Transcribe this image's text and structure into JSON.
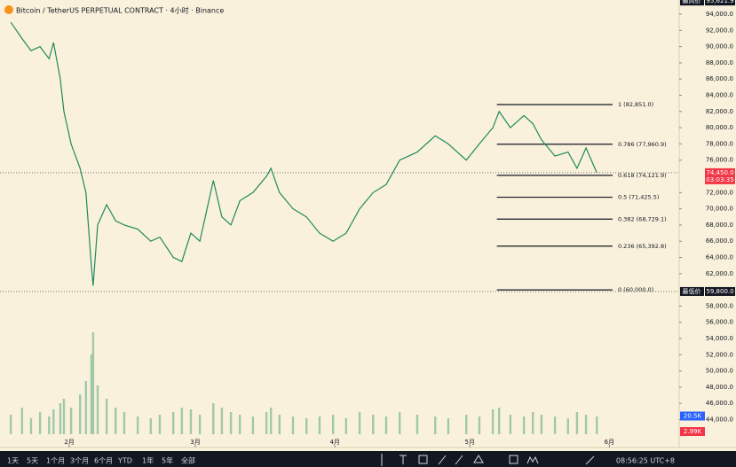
{
  "chart_data": {
    "type": "line",
    "title": "Bitcoin / TetherUS PERPETUAL CONTRACT · 4小时 · Binance",
    "color": "#1e8a5a",
    "x": [
      -13,
      -10.5,
      -8.5,
      -6.5,
      -4.5,
      -3.5,
      -2,
      -1.2,
      0.4,
      2.4,
      3.7,
      4.9,
      5.3,
      6.3,
      8.3,
      10.3,
      12.2,
      15.2,
      18.1,
      20.1,
      23.1,
      25,
      27,
      29,
      32,
      33.9,
      35.9,
      37.9,
      40.8,
      43.8,
      44.8,
      46.7,
      49.7,
      52.7,
      55.6,
      58.6,
      61.5,
      64.5,
      67.5,
      70.4,
      73.4,
      77.3,
      81.3,
      84.2,
      88.2,
      91.1,
      94.1,
      95.5,
      98,
      101,
      103,
      104.9,
      107.9,
      110.8,
      112.8,
      114.8,
      117.2
    ],
    "values": [
      93000,
      91000,
      89500,
      90000,
      88500,
      90500,
      86000,
      82000,
      78000,
      75000,
      72000,
      63000,
      60500,
      68000,
      70500,
      68500,
      68000,
      67500,
      66000,
      66500,
      64000,
      63500,
      67000,
      66000,
      73500,
      69000,
      68000,
      71000,
      72000,
      74000,
      75000,
      72000,
      70000,
      69000,
      67000,
      66000,
      67000,
      70000,
      72000,
      73000,
      76000,
      77000,
      79000,
      78000,
      76000,
      78000,
      80000,
      82000,
      80000,
      81500,
      80500,
      78500,
      76500,
      77000,
      75000,
      77500,
      74450
    ],
    "volume": {
      "color": "#9fc9a8",
      "values": [
        22,
        30,
        18,
        25,
        20,
        28,
        35,
        40,
        30,
        45,
        60,
        90,
        115,
        55,
        40,
        30,
        25,
        20,
        18,
        22,
        25,
        30,
        28,
        22,
        35,
        30,
        25,
        22,
        20,
        25,
        30,
        22,
        20,
        18,
        20,
        22,
        18,
        25,
        22,
        20,
        25,
        22,
        20,
        18,
        22,
        20,
        28,
        30,
        22,
        20,
        25,
        22,
        20,
        18,
        25,
        22,
        20
      ],
      "ylim": [
        0,
        120
      ],
      "tags": [
        {
          "value": 20.5,
          "label": "20.5K",
          "color": "#2962ff"
        },
        {
          "value": 2.99,
          "label": "2.99K",
          "color": "#f23645"
        }
      ]
    },
    "xlim": [
      -15.4,
      135.5
    ],
    "xticks": [
      {
        "value": 0,
        "label": "2月"
      },
      {
        "value": 28,
        "label": "3月"
      },
      {
        "value": 59,
        "label": "4月"
      },
      {
        "value": 89,
        "label": "5月"
      },
      {
        "value": 120,
        "label": "6月"
      }
    ],
    "ylim": [
      42200,
      95750
    ],
    "yticks": [
      {
        "value": 44000,
        "label": "44,000.0"
      },
      {
        "value": 46000,
        "label": "46,000.0"
      },
      {
        "value": 48000,
        "label": "48,000.0"
      },
      {
        "value": 50000,
        "label": "50,000.0"
      },
      {
        "value": 52000,
        "label": "52,000.0"
      },
      {
        "value": 54000,
        "label": "54,000.0"
      },
      {
        "value": 56000,
        "label": "56,000.0"
      },
      {
        "value": 58000,
        "label": "58,000.0"
      },
      {
        "value": 62000,
        "label": "62,000.0"
      },
      {
        "value": 64000,
        "label": "64,000.0"
      },
      {
        "value": 66000,
        "label": "66,000.0"
      },
      {
        "value": 68000,
        "label": "68,000.0"
      },
      {
        "value": 70000,
        "label": "70,000.0"
      },
      {
        "value": 72000,
        "label": "72,000.0"
      },
      {
        "value": 76000,
        "label": "76,000.0"
      },
      {
        "value": 78000,
        "label": "78,000.0"
      },
      {
        "value": 80000,
        "label": "80,000.0"
      },
      {
        "value": 82000,
        "label": "82,000.0"
      },
      {
        "value": 84000,
        "label": "84,000.0"
      },
      {
        "value": 86000,
        "label": "86,000.0"
      },
      {
        "value": 88000,
        "label": "88,000.0"
      },
      {
        "value": 90000,
        "label": "90,000.0"
      },
      {
        "value": 92000,
        "label": "92,000.0"
      },
      {
        "value": 94000,
        "label": "94,000.0"
      }
    ],
    "fib_x": [
      95,
      120.7
    ],
    "fib_levels": [
      {
        "value": 82851,
        "label": "1 (82,851.0)"
      },
      {
        "value": 77960.9,
        "label": "0.786 (77,960.9)"
      },
      {
        "value": 74121.9,
        "label": "0.618 (74,121.9)"
      },
      {
        "value": 71425.5,
        "label": "0.5 (71,425.5)"
      },
      {
        "value": 68729.1,
        "label": "0.382 (68,729.1)"
      },
      {
        "value": 65392.8,
        "label": "0.236 (65,392.8)"
      },
      {
        "value": 60000,
        "label": "0 (60,000.0)"
      }
    ],
    "price_tags": [
      {
        "name": "最高价",
        "value": 95621.9,
        "label": "95,621.9",
        "color": "#131722"
      },
      {
        "value": 74450,
        "label": "74,450.0",
        "countdown": "03:03:35",
        "color": "#f23645"
      },
      {
        "name": "最低价",
        "value": 59800,
        "label": "59,800.0",
        "color": "#131722"
      }
    ]
  },
  "ui": {
    "ranges": [
      "1天",
      "5天",
      "1个月",
      "3个月",
      "6个月",
      "YTD",
      "1年",
      "5年",
      "全部"
    ],
    "clock": "08:56:25 UTC+8"
  }
}
